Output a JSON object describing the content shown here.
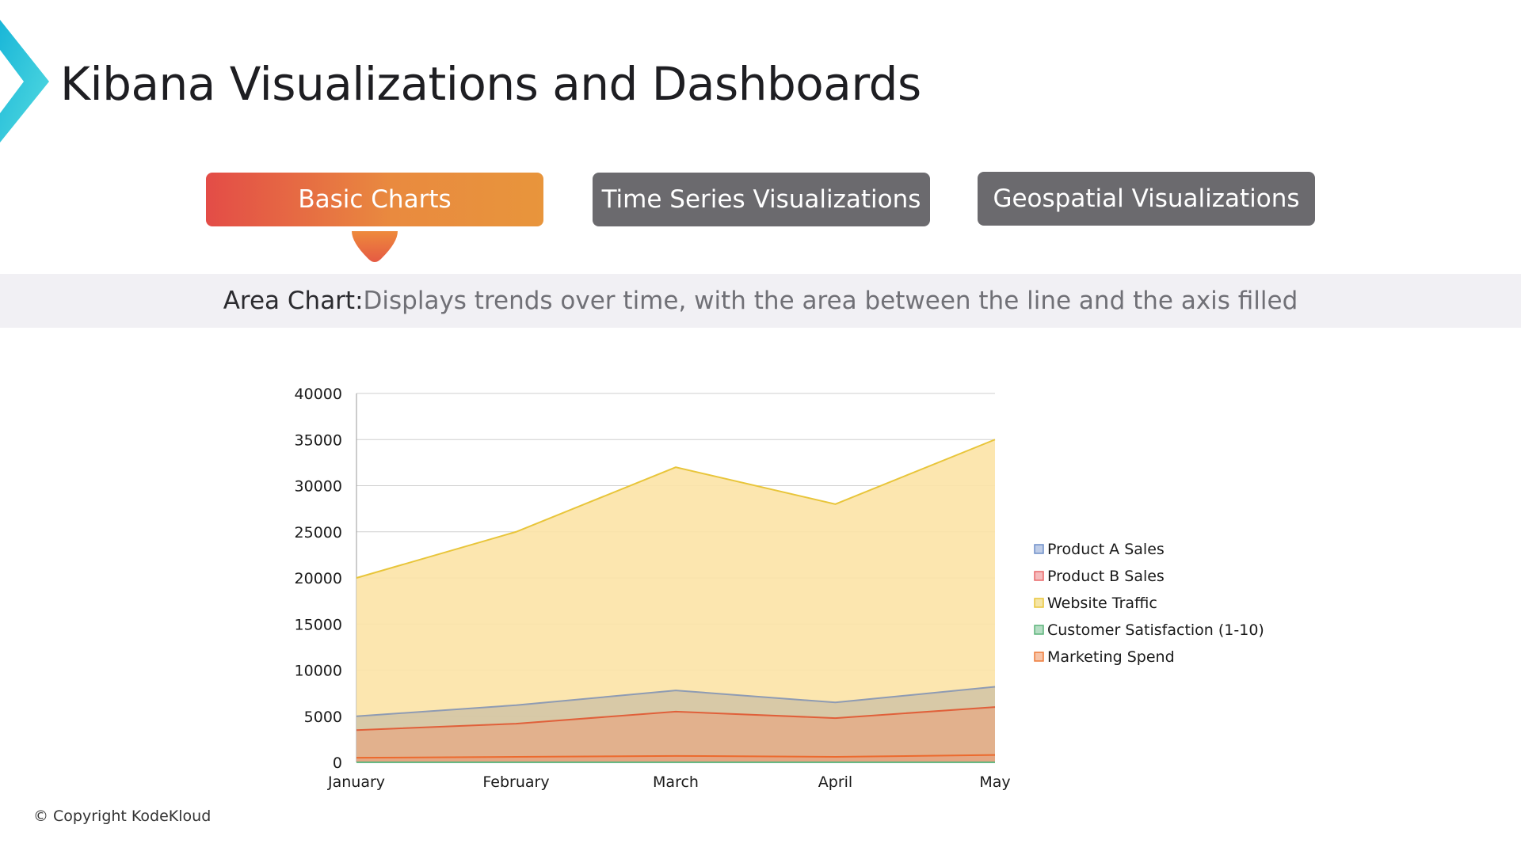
{
  "header": {
    "title": "Kibana Visualizations and Dashboards"
  },
  "tabs": [
    {
      "label": "Basic Charts",
      "active": true
    },
    {
      "label": "Time Series Visualizations",
      "active": false
    },
    {
      "label": "Geospatial Visualizations",
      "active": false
    }
  ],
  "description": {
    "term": "Area Chart:",
    "text": " Displays trends over time, with the area between the line and the axis filled"
  },
  "colors": {
    "accent_start": "#e34c47",
    "accent_end": "#e8953c",
    "tab_inactive": "#6b6a6e",
    "logo": "#2ec7d8"
  },
  "chart_data": {
    "type": "area",
    "categories": [
      "January",
      "February",
      "March",
      "April",
      "May"
    ],
    "ylim": [
      0,
      40000
    ],
    "yticks": [
      0,
      5000,
      10000,
      15000,
      20000,
      25000,
      30000,
      35000,
      40000
    ],
    "grid": true,
    "legend_position": "right",
    "series": [
      {
        "name": "Product A Sales",
        "color": "#6f8fc9",
        "values": [
          5000,
          6200,
          7800,
          6500,
          8200
        ]
      },
      {
        "name": "Product B Sales",
        "color": "#e8686a",
        "values": [
          3500,
          4200,
          5500,
          4800,
          6000
        ]
      },
      {
        "name": "Website Traffic",
        "color": "#e8c53a",
        "values": [
          20000,
          25000,
          32000,
          28000,
          35000
        ]
      },
      {
        "name": "Customer Satisfaction (1-10)",
        "color": "#5bb37a",
        "values": [
          8,
          7.5,
          8.5,
          8,
          9
        ]
      },
      {
        "name": "Marketing Spend",
        "color": "#ed7b3a",
        "values": [
          500,
          600,
          700,
          600,
          800
        ]
      }
    ]
  },
  "footer": {
    "copyright": "© Copyright KodeKloud"
  }
}
